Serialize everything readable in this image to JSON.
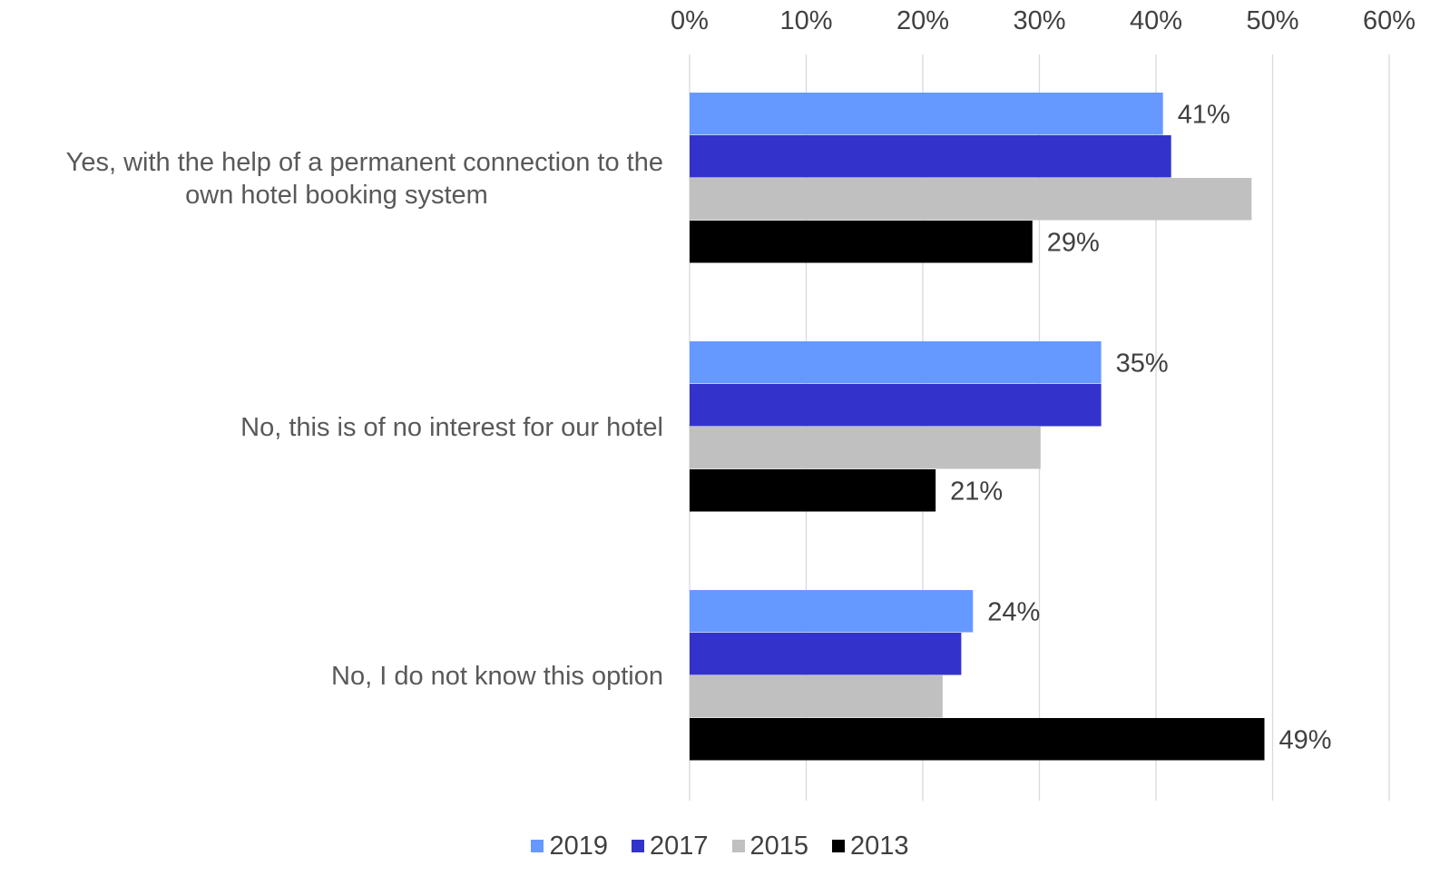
{
  "chart_data": {
    "type": "bar",
    "orientation": "horizontal",
    "title": "",
    "xlabel": "",
    "ylabel": "",
    "xlim": [
      0,
      60
    ],
    "x_ticks": [
      "0%",
      "10%",
      "20%",
      "30%",
      "40%",
      "50%",
      "60%"
    ],
    "x_axis_position": "top",
    "grid": true,
    "legend_position": "bottom",
    "categories": [
      "Yes, with the help of a permanent connection to the own hotel booking system",
      "No, this is of no interest for our hotel",
      "No, I do not know this option"
    ],
    "category_lines": [
      [
        "Yes, with the help of a permanent connection to the",
        "own hotel booking system"
      ],
      [
        "No, this is of no interest for our hotel"
      ],
      [
        "No, I do not know this option"
      ]
    ],
    "series": [
      {
        "name": "2019",
        "color": "#6699ff",
        "values": [
          40.6,
          35.3,
          24.3
        ],
        "labels": [
          "41%",
          "35%",
          "24%"
        ]
      },
      {
        "name": "2017",
        "color": "#3333cc",
        "values": [
          41.3,
          35.3,
          23.3
        ],
        "labels": [
          "",
          "",
          ""
        ]
      },
      {
        "name": "2015",
        "color": "#c0c0c0",
        "values": [
          48.2,
          30.1,
          21.7
        ],
        "labels": [
          "",
          "",
          ""
        ]
      },
      {
        "name": "2013",
        "color": "#000000",
        "values": [
          29.4,
          21.1,
          49.3
        ],
        "labels": [
          "29%",
          "21%",
          "49%"
        ]
      }
    ],
    "colors": {
      "grid": "#d9d9d9",
      "text": "#404040",
      "category_text": "#595959"
    }
  }
}
